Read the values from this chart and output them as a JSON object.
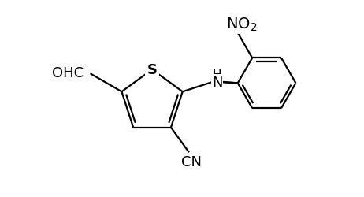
{
  "background": "#ffffff",
  "line_color": "black",
  "line_width": 1.6,
  "font_size": 12,
  "xlim": [
    0.0,
    8.5
  ],
  "ylim": [
    0.2,
    3.2
  ],
  "figsize": [
    4.62,
    2.51
  ],
  "dpi": 100
}
